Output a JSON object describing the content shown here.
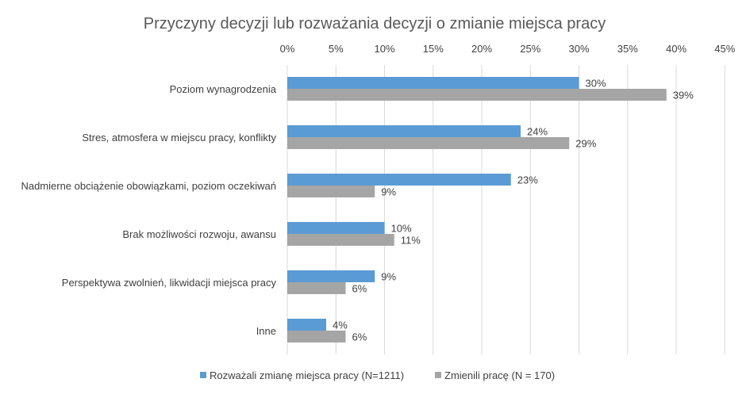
{
  "chart_data": {
    "type": "bar",
    "orientation": "horizontal",
    "title": "Przyczyny decyzji lub rozważania decyzji o zmianie miejsca pracy",
    "categories": [
      "Poziom wynagrodzenia",
      "Stres, atmosfera w miejscu pracy, konflikty",
      "Nadmierne obciążenie obowiązkami, poziom oczekiwań",
      "Brak możliwości rozwoju, awansu",
      "Perspektywa zwolnień, likwidacji miejsca pracy",
      "Inne"
    ],
    "series": [
      {
        "name": "Rozważali zmianę miejsca pracy (N=1211)",
        "color": "#5b9bd5",
        "values": [
          30,
          24,
          23,
          10,
          9,
          4
        ],
        "labels": [
          "30%",
          "24%",
          "23%",
          "10%",
          "9%",
          "4%"
        ]
      },
      {
        "name": "Zmienili pracę (N = 170)",
        "color": "#a5a5a5",
        "values": [
          39,
          29,
          9,
          11,
          6,
          6
        ],
        "labels": [
          "39%",
          "29%",
          "9%",
          "11%",
          "6%",
          "6%"
        ]
      }
    ],
    "xlim": [
      0,
      45
    ],
    "xticks": [
      0,
      5,
      10,
      15,
      20,
      25,
      30,
      35,
      40,
      45
    ],
    "xtick_labels": [
      "0%",
      "5%",
      "10%",
      "15%",
      "20%",
      "25%",
      "30%",
      "35%",
      "40%",
      "45%"
    ],
    "axis_position": "top",
    "grid": true,
    "legend_position": "bottom"
  }
}
